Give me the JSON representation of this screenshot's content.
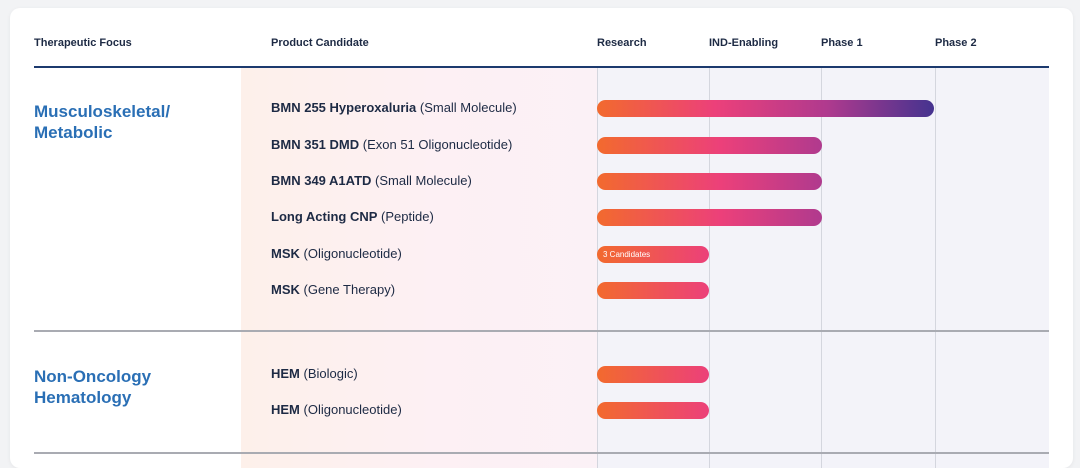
{
  "header": {
    "therapeutic_focus": "Therapeutic Focus",
    "product_candidate": "Product Candidate",
    "phases": [
      "Research",
      "IND-Enabling",
      "Phase 1",
      "Phase 2"
    ]
  },
  "groups": [
    {
      "focus_lines": [
        "Musculoskeletal/",
        "Metabolic"
      ],
      "candidates": [
        {
          "name": "BMN 255 Hyperoxaluria",
          "modality": "(Small Molecule)",
          "progress_phase": 3.0,
          "label": ""
        },
        {
          "name": "BMN 351 DMD",
          "modality": "(Exon 51 Oligonucleotide)",
          "progress_phase": 2.0,
          "label": ""
        },
        {
          "name": "BMN 349 A1ATD",
          "modality": "(Small Molecule)",
          "progress_phase": 2.0,
          "label": ""
        },
        {
          "name": "Long Acting CNP",
          "modality": "(Peptide)",
          "progress_phase": 2.0,
          "label": ""
        },
        {
          "name": "MSK",
          "modality": "(Oligonucleotide)",
          "progress_phase": 1.0,
          "label": "3 Candidates"
        },
        {
          "name": "MSK",
          "modality": "(Gene Therapy)",
          "progress_phase": 1.0,
          "label": ""
        }
      ]
    },
    {
      "focus_lines": [
        "Non-Oncology",
        "Hematology"
      ],
      "candidates": [
        {
          "name": "HEM",
          "modality": "(Biologic)",
          "progress_phase": 1.0,
          "label": ""
        },
        {
          "name": "HEM",
          "modality": "(Oligonucleotide)",
          "progress_phase": 1.0,
          "label": ""
        }
      ]
    }
  ],
  "colors": {
    "focus": "#2a6fb5",
    "text": "#1d2a44",
    "header_rule": "#1c3a6e",
    "bar_start": "#f26a2e",
    "bar_mid": "#ec407a",
    "bar_phase2": "#b03a8e",
    "bar_end": "#45338f"
  },
  "chart_data": {
    "type": "bar",
    "orientation": "horizontal",
    "categories": [
      "BMN 255 Hyperoxaluria (Small Molecule)",
      "BMN 351 DMD (Exon 51 Oligonucleotide)",
      "BMN 349 A1ATD (Small Molecule)",
      "Long Acting CNP (Peptide)",
      "MSK (Oligonucleotide)",
      "MSK (Gene Therapy)",
      "HEM (Biologic)",
      "HEM (Oligonucleotide)"
    ],
    "values": [
      3.0,
      2.0,
      2.0,
      2.0,
      1.0,
      1.0,
      1.0,
      1.0
    ],
    "x_categories": [
      "Research",
      "IND-Enabling",
      "Phase 1",
      "Phase 2"
    ],
    "xlim": [
      0,
      4
    ],
    "groups": [
      "Musculoskeletal/Metabolic",
      "Non-Oncology Hematology"
    ],
    "annotations": [
      "3 Candidates"
    ],
    "grid": true
  }
}
